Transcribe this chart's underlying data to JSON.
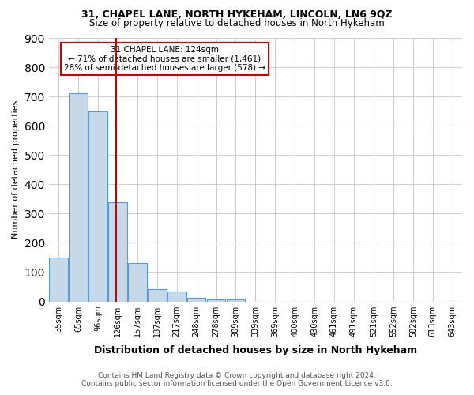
{
  "title": "31, CHAPEL LANE, NORTH HYKEHAM, LINCOLN, LN6 9QZ",
  "subtitle": "Size of property relative to detached houses in North Hykeham",
  "xlabel": "Distribution of detached houses by size in North Hykeham",
  "ylabel": "Number of detached properties",
  "bin_labels": [
    "35sqm",
    "65sqm",
    "96sqm",
    "126sqm",
    "157sqm",
    "187sqm",
    "217sqm",
    "248sqm",
    "278sqm",
    "309sqm",
    "339sqm",
    "369sqm",
    "400sqm",
    "430sqm",
    "461sqm",
    "491sqm",
    "521sqm",
    "552sqm",
    "582sqm",
    "613sqm",
    "643sqm"
  ],
  "bar_values": [
    150,
    710,
    650,
    340,
    130,
    42,
    35,
    12,
    8,
    8,
    0,
    0,
    0,
    0,
    0,
    0,
    0,
    0,
    0,
    0,
    0
  ],
  "bar_color": "#c6d9e8",
  "bar_edgecolor": "#5b9bd5",
  "vline_color": "#cc0000",
  "vline_pos": 2.93,
  "annotation_text": "31 CHAPEL LANE: 124sqm\n← 71% of detached houses are smaller (1,461)\n28% of semi-detached houses are larger (578) →",
  "annotation_box_color": "#ffffff",
  "annotation_box_edgecolor": "#cc0000",
  "ylim": [
    0,
    900
  ],
  "yticks": [
    0,
    100,
    200,
    300,
    400,
    500,
    600,
    700,
    800,
    900
  ],
  "footnote1": "Contains HM Land Registry data © Crown copyright and database right 2024.",
  "footnote2": "Contains public sector information licensed under the Open Government Licence v3.0.",
  "bg_color": "#ffffff",
  "grid_color": "#d0d0d0"
}
